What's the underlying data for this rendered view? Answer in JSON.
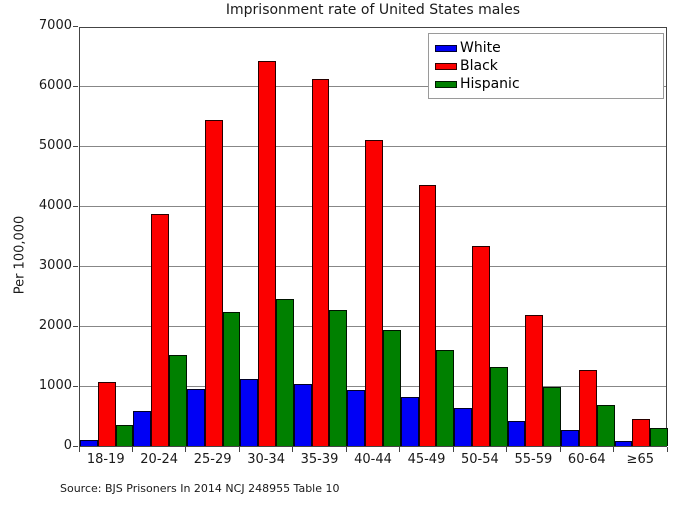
{
  "title": "Imprisonment rate of United States males",
  "ylabel": "Per 100,000",
  "source_note": "Source: BJS Prisoners In 2014 NCJ 248955 Table 10",
  "legend": {
    "entries": [
      "White",
      "Black",
      "Hispanic"
    ]
  },
  "colors": {
    "white_series": "#0000f5",
    "black_series": "#fb0000",
    "hispanic_series": "#008000",
    "gridline": "#878787",
    "frame": "#444444",
    "text": "#1a1a1a"
  },
  "chart_data": {
    "type": "bar",
    "title": "Imprisonment rate of United States males",
    "xlabel": "",
    "ylabel": "Per 100,000",
    "categories": [
      "18-19",
      "20-24",
      "25-29",
      "30-34",
      "35-39",
      "40-44",
      "45-49",
      "50-54",
      "55-59",
      "60-64",
      "≥65"
    ],
    "series": [
      {
        "name": "White",
        "color": "#0000f5",
        "values": [
          108,
          585,
          951,
          1111,
          1028,
          937,
          817,
          635,
          415,
          260,
          91
        ]
      },
      {
        "name": "Black",
        "color": "#fb0000",
        "values": [
          1072,
          3868,
          5434,
          6412,
          6122,
          5103,
          4355,
          3329,
          2178,
          1267,
          443
        ]
      },
      {
        "name": "Hispanic",
        "color": "#008000",
        "values": [
          349,
          1521,
          2241,
          2457,
          2272,
          1938,
          1606,
          1323,
          984,
          684,
          294
        ]
      }
    ],
    "ylim": [
      0,
      7000
    ],
    "yticks": [
      0,
      1000,
      2000,
      3000,
      4000,
      5000,
      6000,
      7000
    ],
    "grid": true,
    "legend_position": "upper right inside plot",
    "source": "Source: BJS Prisoners In 2014 NCJ 248955 Table 10"
  }
}
